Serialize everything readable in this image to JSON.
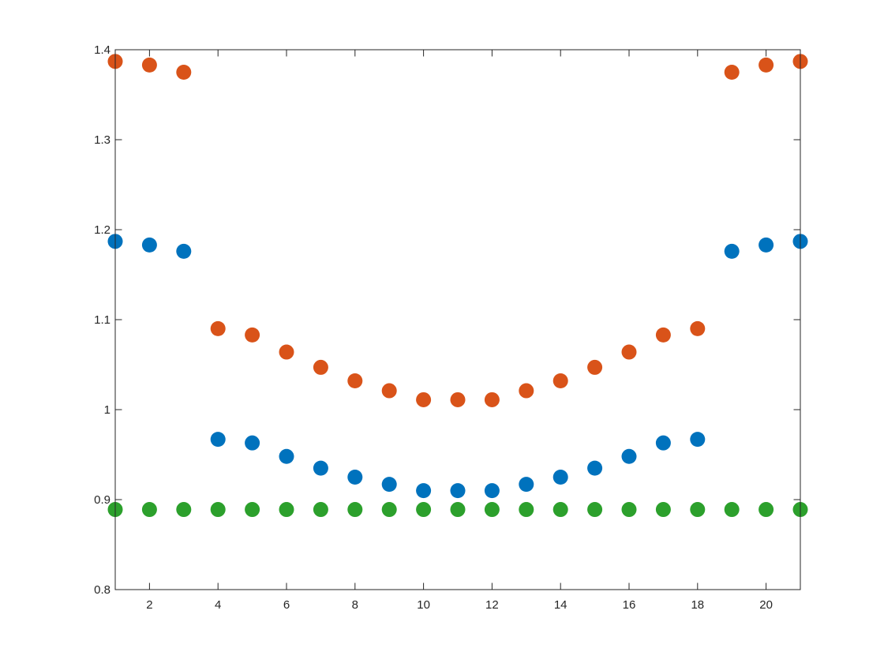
{
  "chart_data": {
    "type": "scatter",
    "title": "",
    "xlabel": "",
    "ylabel": "",
    "xlim": [
      1,
      21
    ],
    "ylim": [
      0.8,
      1.4
    ],
    "x_ticks": [
      2,
      4,
      6,
      8,
      10,
      12,
      14,
      16,
      18,
      20
    ],
    "y_ticks": [
      0.8,
      0.9,
      1.0,
      1.1,
      1.2,
      1.3,
      1.4
    ],
    "x_tick_labels": [
      "2",
      "4",
      "6",
      "8",
      "10",
      "12",
      "14",
      "16",
      "18",
      "20"
    ],
    "y_tick_labels": [
      "0.8",
      "0.9",
      "1",
      "1.1",
      "1.2",
      "1.3",
      "1.4"
    ],
    "grid": false,
    "legend": "none",
    "x": [
      1,
      2,
      3,
      4,
      5,
      6,
      7,
      8,
      9,
      10,
      11,
      12,
      13,
      14,
      15,
      16,
      17,
      18,
      19,
      20,
      21
    ],
    "series": [
      {
        "color": "#0072BD",
        "values": [
          1.187,
          1.183,
          1.176,
          0.967,
          0.963,
          0.948,
          0.935,
          0.925,
          0.917,
          0.91,
          0.91,
          0.91,
          0.917,
          0.925,
          0.935,
          0.948,
          0.963,
          0.967,
          1.176,
          1.183,
          1.187
        ]
      },
      {
        "color": "#D95319",
        "values": [
          1.387,
          1.383,
          1.375,
          1.09,
          1.083,
          1.064,
          1.047,
          1.032,
          1.021,
          1.011,
          1.011,
          1.011,
          1.021,
          1.032,
          1.047,
          1.064,
          1.083,
          1.09,
          1.375,
          1.383,
          1.387
        ]
      },
      {
        "color": "#2CA02C",
        "values": [
          0.889,
          0.889,
          0.889,
          0.889,
          0.889,
          0.889,
          0.889,
          0.889,
          0.889,
          0.889,
          0.889,
          0.889,
          0.889,
          0.889,
          0.889,
          0.889,
          0.889,
          0.889,
          0.889,
          0.889,
          0.889
        ]
      }
    ]
  }
}
